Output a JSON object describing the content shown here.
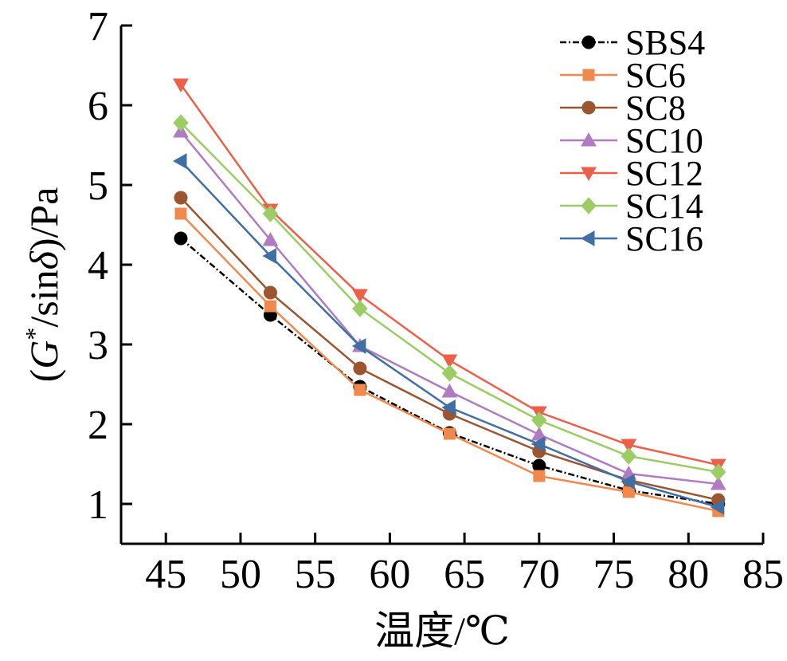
{
  "chart_data": {
    "type": "line",
    "xlabel": "温度/℃",
    "ylabel_parts": [
      "(",
      "G",
      "*",
      "/sin",
      "δ",
      ")/Pa"
    ],
    "x": [
      46,
      52,
      58,
      64,
      70,
      76,
      82
    ],
    "xlim": [
      42,
      85
    ],
    "ylim": [
      0.5,
      7
    ],
    "x_ticks": [
      45,
      50,
      55,
      60,
      65,
      70,
      75,
      80,
      85
    ],
    "y_ticks": [
      1,
      2,
      3,
      4,
      5,
      6,
      7
    ],
    "grid": false,
    "legend_position": "top-right",
    "series": [
      {
        "name": "SBS4",
        "color": "#000000",
        "marker": "circle",
        "dashed": true,
        "values": [
          4.33,
          3.37,
          2.47,
          1.89,
          1.48,
          1.17,
          1.0
        ]
      },
      {
        "name": "SC6",
        "color": "#f0894e",
        "marker": "square",
        "dashed": false,
        "values": [
          4.64,
          3.48,
          2.43,
          1.88,
          1.35,
          1.15,
          0.91
        ]
      },
      {
        "name": "SC8",
        "color": "#9b5530",
        "marker": "circle",
        "dashed": false,
        "values": [
          4.84,
          3.65,
          2.7,
          2.13,
          1.66,
          1.3,
          1.05
        ]
      },
      {
        "name": "SC10",
        "color": "#b07bc1",
        "marker": "triangle-up",
        "dashed": false,
        "values": [
          5.67,
          4.31,
          2.98,
          2.41,
          1.87,
          1.38,
          1.25
        ]
      },
      {
        "name": "SC12",
        "color": "#ec5f49",
        "marker": "triangle-down",
        "dashed": false,
        "values": [
          6.26,
          4.69,
          3.62,
          2.8,
          2.15,
          1.74,
          1.49
        ]
      },
      {
        "name": "SC14",
        "color": "#9ccc65",
        "marker": "diamond",
        "dashed": false,
        "values": [
          5.78,
          4.64,
          3.45,
          2.64,
          2.05,
          1.6,
          1.4
        ]
      },
      {
        "name": "SC16",
        "color": "#3f6fa3",
        "marker": "triangle-left",
        "dashed": false,
        "values": [
          5.3,
          4.11,
          2.98,
          2.21,
          1.75,
          1.28,
          0.96
        ]
      }
    ]
  }
}
